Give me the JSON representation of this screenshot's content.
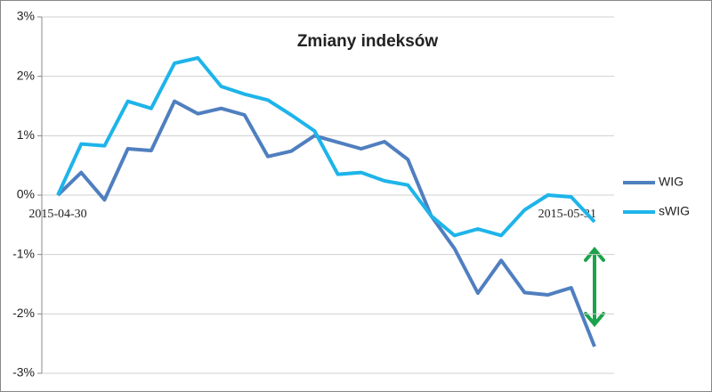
{
  "chart_data": {
    "type": "line",
    "title": "Zmiany indeksów",
    "categories": [
      "2015-04-30",
      null,
      null,
      null,
      null,
      null,
      null,
      null,
      null,
      null,
      null,
      null,
      null,
      null,
      null,
      null,
      null,
      null,
      null,
      null,
      null,
      null,
      null,
      "2015-05-31"
    ],
    "series": [
      {
        "name": "WIG",
        "color": "#4f7fbf",
        "values": [
          0,
          0.38,
          -0.08,
          0.78,
          0.75,
          1.58,
          1.37,
          1.46,
          1.35,
          0.65,
          0.74,
          1.0,
          0.89,
          0.78,
          0.9,
          0.6,
          -0.35,
          -0.9,
          -1.65,
          -1.1,
          -1.64,
          -1.68,
          -1.56,
          -2.55
        ]
      },
      {
        "name": "sWIG",
        "color": "#1eb4ea",
        "values": [
          0,
          0.86,
          0.83,
          1.58,
          1.46,
          2.22,
          2.31,
          1.83,
          1.7,
          1.6,
          1.35,
          1.08,
          0.35,
          0.38,
          0.24,
          0.17,
          -0.35,
          -0.68,
          -0.57,
          -0.68,
          -0.25,
          0,
          -0.03,
          -0.45
        ]
      }
    ],
    "ylim": [
      -3,
      3
    ],
    "yticks": [
      {
        "value": -3,
        "label": "-3%"
      },
      {
        "value": -2,
        "label": "-2%"
      },
      {
        "value": -1,
        "label": "-1%"
      },
      {
        "value": 0,
        "label": "0%"
      },
      {
        "value": 1,
        "label": "1%"
      },
      {
        "value": 2,
        "label": "2%"
      },
      {
        "value": 3,
        "label": "3%"
      }
    ],
    "grid": true,
    "legend": "right"
  }
}
